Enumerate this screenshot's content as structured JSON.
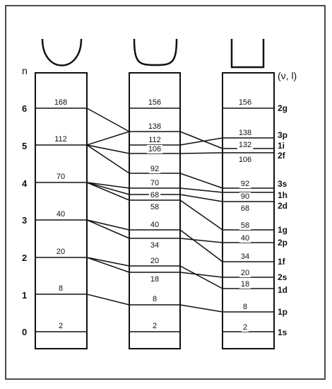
{
  "axis_label": "n",
  "quantum_label": "(ν, l)",
  "n_levels": [
    "0",
    "1",
    "2",
    "3",
    "4",
    "5",
    "6"
  ],
  "col1_numbers": [
    "2",
    "8",
    "20",
    "40",
    "70",
    "112",
    "168"
  ],
  "col2_numbers": [
    "2",
    "8",
    "18",
    "20",
    "34",
    "40",
    "58",
    "68",
    "70",
    "92",
    "106",
    "112",
    "138",
    "156"
  ],
  "col3_numbers": [
    "2",
    "8",
    "18",
    "20",
    "34",
    "40",
    "58",
    "68",
    "90",
    "92",
    "106",
    "132",
    "138",
    "156"
  ],
  "state_labels": [
    "1s",
    "1p",
    "1d",
    "2s",
    "1f",
    "2p",
    "1g",
    "3s",
    "1h",
    "2d",
    "3p",
    "1i",
    "2f",
    "2g"
  ]
}
